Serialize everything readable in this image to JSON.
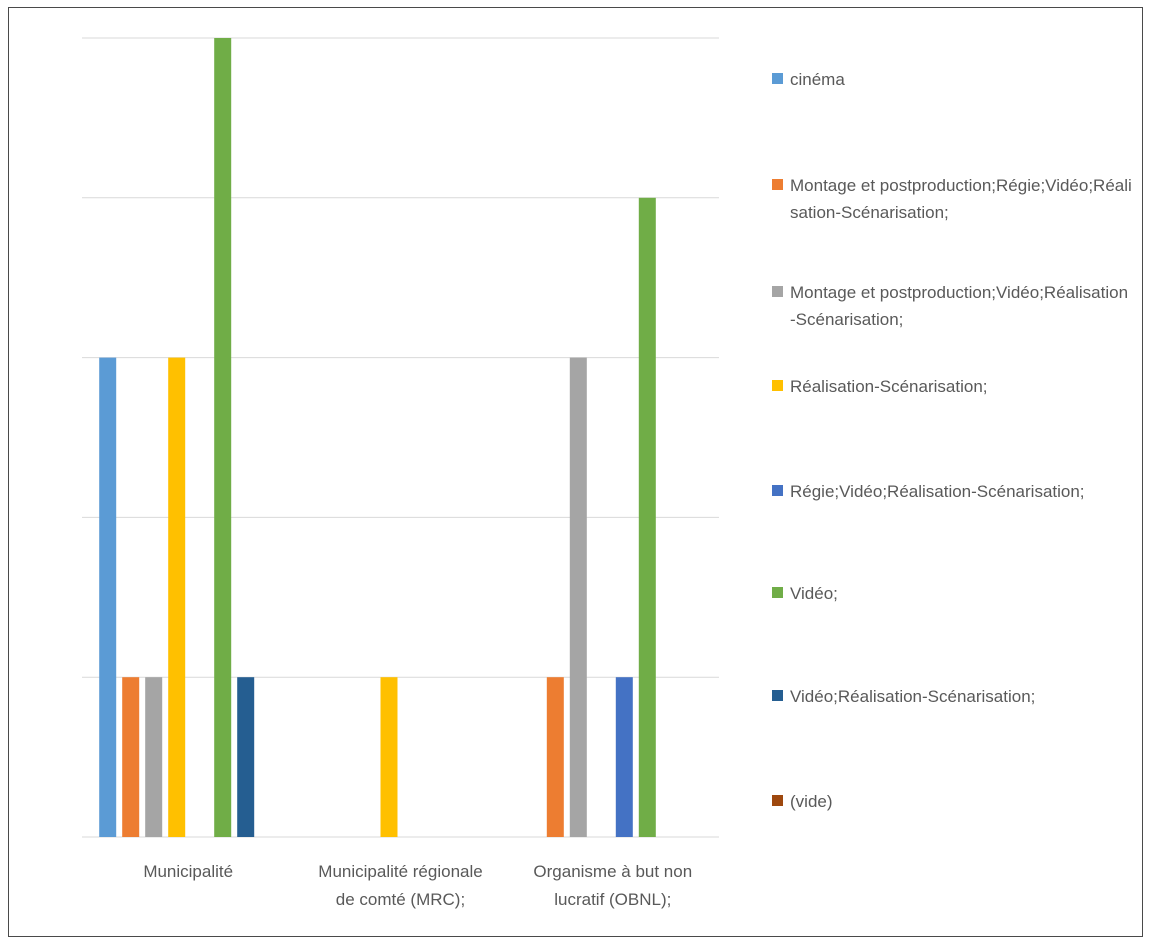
{
  "chart_data": {
    "type": "bar",
    "title": "",
    "xlabel": "",
    "ylabel": "",
    "ylim": [
      0,
      5
    ],
    "grid": true,
    "legend_position": "right",
    "categories": [
      "Municipalité",
      "Municipalité régionale de comté (MRC);",
      "Organisme à but non lucratif (OBNL);"
    ],
    "series": [
      {
        "name": "cinéma",
        "color": "#5b9bd5",
        "values": [
          3,
          0,
          0
        ]
      },
      {
        "name": "Montage et postproduction;Régie;Vidéo;Réalisation-Scénarisation;",
        "color": "#ed7d31",
        "values": [
          1,
          0,
          1
        ]
      },
      {
        "name": "Montage et postproduction;Vidéo;Réalisation-Scénarisation;",
        "color": "#a5a5a5",
        "values": [
          1,
          0,
          3
        ]
      },
      {
        "name": "Réalisation-Scénarisation;",
        "color": "#ffc000",
        "values": [
          3,
          1,
          0
        ]
      },
      {
        "name": "Régie;Vidéo;Réalisation-Scénarisation;",
        "color": "#4472c4",
        "values": [
          0,
          0,
          1
        ]
      },
      {
        "name": "Vidéo;",
        "color": "#70ad47",
        "values": [
          5,
          0,
          4
        ]
      },
      {
        "name": "Vidéo;Réalisation-Scénarisation;",
        "color": "#255e91",
        "values": [
          1,
          0,
          0
        ]
      },
      {
        "name": "(vide)",
        "color": "#9e480e",
        "values": [
          0,
          0,
          0
        ]
      }
    ]
  }
}
